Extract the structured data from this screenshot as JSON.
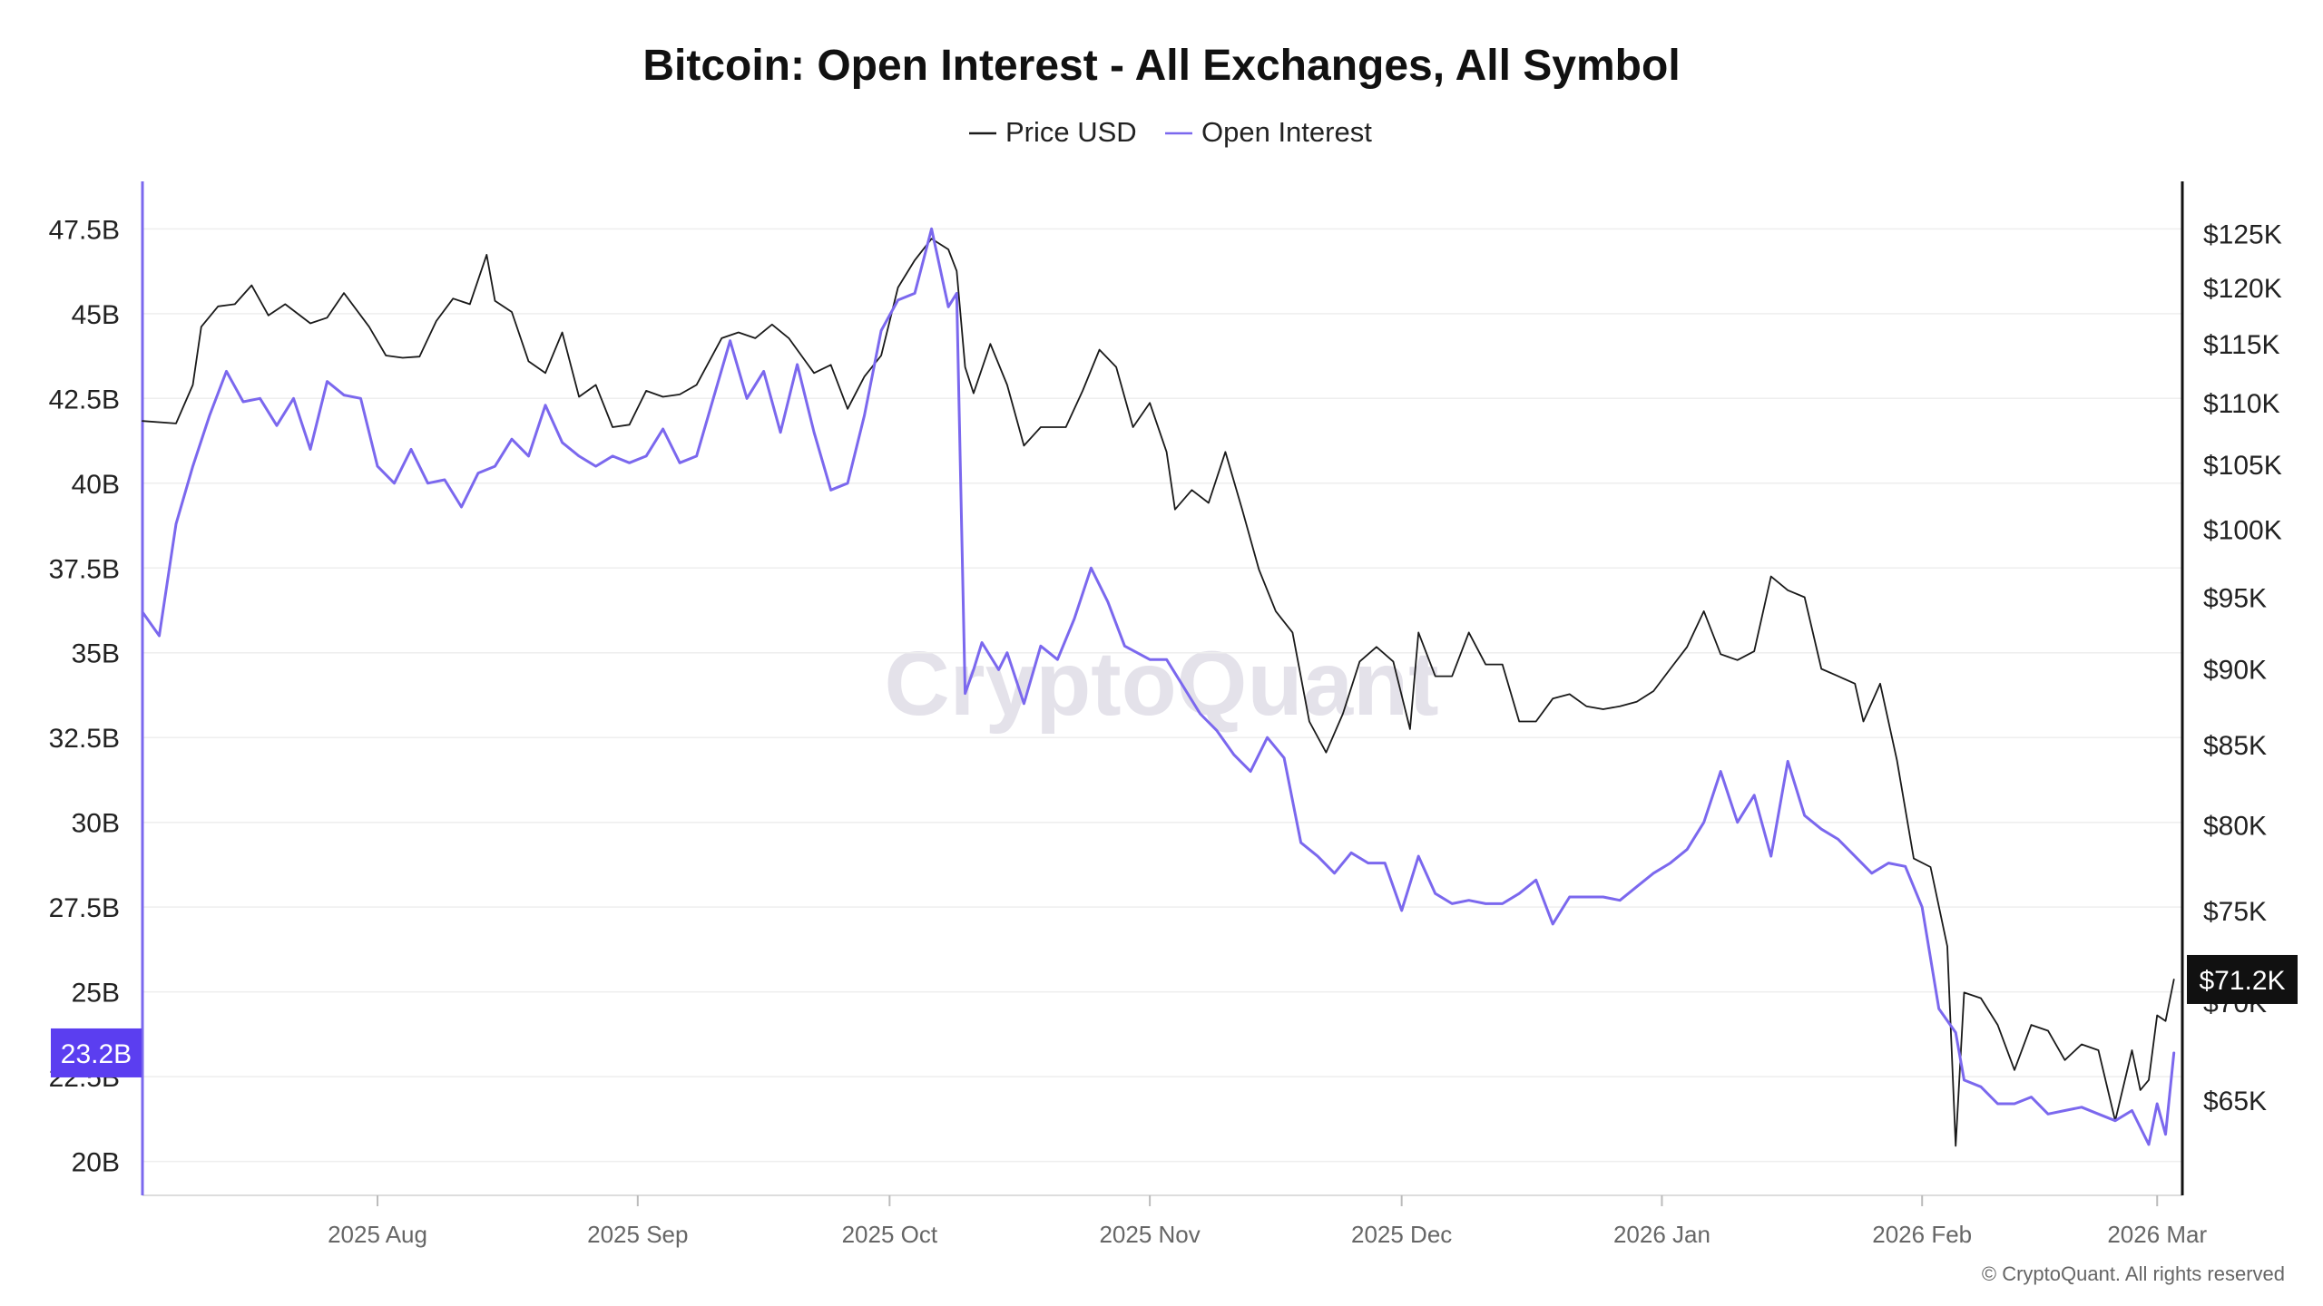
{
  "chart_data": {
    "type": "line",
    "title": "Bitcoin: Open Interest - All Exchanges, All Symbol",
    "legend": {
      "position": "top-center",
      "items": [
        {
          "name": "Price USD",
          "color": "#1a1a1a"
        },
        {
          "name": "Open Interest",
          "color": "#7b68ee"
        }
      ]
    },
    "x_ticks": [
      "2025 Aug",
      "2025 Sep",
      "2025 Oct",
      "2025 Nov",
      "2025 Dec",
      "2026 Jan",
      "2026 Feb",
      "2026 Mar"
    ],
    "x_range": [
      "2025-07-04",
      "2026-03-04"
    ],
    "left_axis": {
      "series": "Open Interest",
      "ticks": [
        "20B",
        "22.5B",
        "25B",
        "27.5B",
        "30B",
        "32.5B",
        "35B",
        "37.5B",
        "40B",
        "42.5B",
        "45B",
        "47.5B"
      ],
      "tick_values": [
        20,
        22.5,
        25,
        27.5,
        30,
        32.5,
        35,
        37.5,
        40,
        42.5,
        45,
        47.5
      ],
      "range_billions": [
        19,
        48.9
      ],
      "color": "#7b68ee"
    },
    "right_axis": {
      "series": "Price USD",
      "scale": "log",
      "ticks": [
        "$65K",
        "$70K",
        "$75K",
        "$80K",
        "$85K",
        "$90K",
        "$95K",
        "$100K",
        "$105K",
        "$110K",
        "$115K",
        "$120K",
        "$125K"
      ],
      "tick_values": [
        65000,
        70000,
        75000,
        80000,
        85000,
        90000,
        95000,
        100000,
        105000,
        110000,
        115000,
        120000,
        125000
      ],
      "range_usd": [
        60500,
        130000
      ],
      "color": "#1a1a1a"
    },
    "grid": "horizontal",
    "last_value_labels": {
      "open_interest": "23.2B",
      "price": "$71.2K"
    },
    "watermark": "CryptoQuant",
    "copyright": "© CryptoQuant. All rights reserved",
    "series": [
      {
        "name": "Price USD",
        "color": "#1a1a1a",
        "unit": "USD",
        "points": [
          [
            "2025-07-04",
            108500
          ],
          [
            "2025-07-08",
            108300
          ],
          [
            "2025-07-10",
            111500
          ],
          [
            "2025-07-11",
            116500
          ],
          [
            "2025-07-13",
            118300
          ],
          [
            "2025-07-15",
            118500
          ],
          [
            "2025-07-17",
            120200
          ],
          [
            "2025-07-19",
            117500
          ],
          [
            "2025-07-21",
            118500
          ],
          [
            "2025-07-24",
            116800
          ],
          [
            "2025-07-26",
            117300
          ],
          [
            "2025-07-28",
            119500
          ],
          [
            "2025-07-31",
            116500
          ],
          [
            "2025-08-02",
            114000
          ],
          [
            "2025-08-04",
            113800
          ],
          [
            "2025-08-06",
            113900
          ],
          [
            "2025-08-08",
            117000
          ],
          [
            "2025-08-10",
            119000
          ],
          [
            "2025-08-12",
            118500
          ],
          [
            "2025-08-14",
            123000
          ],
          [
            "2025-08-15",
            118800
          ],
          [
            "2025-08-17",
            117800
          ],
          [
            "2025-08-19",
            113500
          ],
          [
            "2025-08-21",
            112500
          ],
          [
            "2025-08-23",
            116000
          ],
          [
            "2025-08-25",
            110500
          ],
          [
            "2025-08-27",
            111500
          ],
          [
            "2025-08-29",
            108000
          ],
          [
            "2025-08-31",
            108200
          ],
          [
            "2025-09-02",
            111000
          ],
          [
            "2025-09-04",
            110500
          ],
          [
            "2025-09-06",
            110700
          ],
          [
            "2025-09-08",
            111500
          ],
          [
            "2025-09-11",
            115500
          ],
          [
            "2025-09-13",
            116000
          ],
          [
            "2025-09-15",
            115500
          ],
          [
            "2025-09-17",
            116700
          ],
          [
            "2025-09-19",
            115500
          ],
          [
            "2025-09-22",
            112500
          ],
          [
            "2025-09-24",
            113200
          ],
          [
            "2025-09-26",
            109500
          ],
          [
            "2025-09-28",
            112200
          ],
          [
            "2025-09-30",
            114000
          ],
          [
            "2025-10-02",
            120000
          ],
          [
            "2025-10-04",
            122500
          ],
          [
            "2025-10-06",
            124500
          ],
          [
            "2025-10-08",
            123500
          ],
          [
            "2025-10-09",
            121500
          ],
          [
            "2025-10-10",
            113000
          ],
          [
            "2025-10-11",
            110800
          ],
          [
            "2025-10-13",
            115000
          ],
          [
            "2025-10-15",
            111500
          ],
          [
            "2025-10-17",
            106500
          ],
          [
            "2025-10-19",
            108000
          ],
          [
            "2025-10-22",
            108000
          ],
          [
            "2025-10-24",
            111000
          ],
          [
            "2025-10-26",
            114500
          ],
          [
            "2025-10-28",
            113000
          ],
          [
            "2025-10-30",
            108000
          ],
          [
            "2025-11-01",
            110000
          ],
          [
            "2025-11-03",
            106000
          ],
          [
            "2025-11-04",
            101500
          ],
          [
            "2025-11-06",
            103000
          ],
          [
            "2025-11-08",
            102000
          ],
          [
            "2025-11-10",
            106000
          ],
          [
            "2025-11-12",
            101500
          ],
          [
            "2025-11-14",
            97000
          ],
          [
            "2025-11-16",
            94000
          ],
          [
            "2025-11-18",
            92500
          ],
          [
            "2025-11-20",
            86500
          ],
          [
            "2025-11-22",
            84500
          ],
          [
            "2025-11-24",
            87000
          ],
          [
            "2025-11-26",
            90500
          ],
          [
            "2025-11-28",
            91500
          ],
          [
            "2025-11-30",
            90500
          ],
          [
            "2025-12-02",
            86000
          ],
          [
            "2025-12-03",
            92500
          ],
          [
            "2025-12-05",
            89500
          ],
          [
            "2025-12-07",
            89500
          ],
          [
            "2025-12-09",
            92500
          ],
          [
            "2025-12-11",
            90300
          ],
          [
            "2025-12-13",
            90300
          ],
          [
            "2025-12-15",
            86500
          ],
          [
            "2025-12-17",
            86500
          ],
          [
            "2025-12-19",
            88000
          ],
          [
            "2025-12-21",
            88300
          ],
          [
            "2025-12-23",
            87500
          ],
          [
            "2025-12-25",
            87300
          ],
          [
            "2025-12-27",
            87500
          ],
          [
            "2025-12-29",
            87800
          ],
          [
            "2025-12-31",
            88500
          ],
          [
            "2026-01-02",
            90000
          ],
          [
            "2026-01-04",
            91500
          ],
          [
            "2026-01-06",
            94000
          ],
          [
            "2026-01-08",
            91000
          ],
          [
            "2026-01-10",
            90600
          ],
          [
            "2026-01-12",
            91200
          ],
          [
            "2026-01-14",
            96500
          ],
          [
            "2026-01-16",
            95500
          ],
          [
            "2026-01-18",
            95000
          ],
          [
            "2026-01-20",
            90000
          ],
          [
            "2026-01-22",
            89500
          ],
          [
            "2026-01-24",
            89000
          ],
          [
            "2026-01-25",
            86500
          ],
          [
            "2026-01-27",
            89000
          ],
          [
            "2026-01-29",
            84000
          ],
          [
            "2026-01-31",
            78000
          ],
          [
            "2026-02-02",
            77500
          ],
          [
            "2026-02-04",
            73000
          ],
          [
            "2026-02-05",
            62800
          ],
          [
            "2026-02-06",
            70500
          ],
          [
            "2026-02-08",
            70200
          ],
          [
            "2026-02-10",
            68800
          ],
          [
            "2026-02-12",
            66500
          ],
          [
            "2026-02-14",
            68800
          ],
          [
            "2026-02-16",
            68500
          ],
          [
            "2026-02-18",
            67000
          ],
          [
            "2026-02-20",
            67800
          ],
          [
            "2026-02-22",
            67500
          ],
          [
            "2026-02-24",
            64000
          ],
          [
            "2026-02-26",
            67500
          ],
          [
            "2026-02-27",
            65500
          ],
          [
            "2026-02-28",
            66000
          ],
          [
            "2026-03-01",
            69300
          ],
          [
            "2026-03-02",
            69000
          ],
          [
            "2026-03-03",
            71200
          ]
        ]
      },
      {
        "name": "Open Interest",
        "color": "#7b68ee",
        "unit": "billion USD",
        "points": [
          [
            "2025-07-04",
            36.2
          ],
          [
            "2025-07-06",
            35.5
          ],
          [
            "2025-07-08",
            38.8
          ],
          [
            "2025-07-10",
            40.5
          ],
          [
            "2025-07-12",
            42.0
          ],
          [
            "2025-07-14",
            43.3
          ],
          [
            "2025-07-16",
            42.4
          ],
          [
            "2025-07-18",
            42.5
          ],
          [
            "2025-07-20",
            41.7
          ],
          [
            "2025-07-22",
            42.5
          ],
          [
            "2025-07-24",
            41.0
          ],
          [
            "2025-07-26",
            43.0
          ],
          [
            "2025-07-28",
            42.6
          ],
          [
            "2025-07-30",
            42.5
          ],
          [
            "2025-08-01",
            40.5
          ],
          [
            "2025-08-03",
            40.0
          ],
          [
            "2025-08-05",
            41.0
          ],
          [
            "2025-08-07",
            40.0
          ],
          [
            "2025-08-09",
            40.1
          ],
          [
            "2025-08-11",
            39.3
          ],
          [
            "2025-08-13",
            40.3
          ],
          [
            "2025-08-15",
            40.5
          ],
          [
            "2025-08-17",
            41.3
          ],
          [
            "2025-08-19",
            40.8
          ],
          [
            "2025-08-21",
            42.3
          ],
          [
            "2025-08-23",
            41.2
          ],
          [
            "2025-08-25",
            40.8
          ],
          [
            "2025-08-27",
            40.5
          ],
          [
            "2025-08-29",
            40.8
          ],
          [
            "2025-08-31",
            40.6
          ],
          [
            "2025-09-02",
            40.8
          ],
          [
            "2025-09-04",
            41.6
          ],
          [
            "2025-09-06",
            40.6
          ],
          [
            "2025-09-08",
            40.8
          ],
          [
            "2025-09-10",
            42.5
          ],
          [
            "2025-09-12",
            44.2
          ],
          [
            "2025-09-14",
            42.5
          ],
          [
            "2025-09-16",
            43.3
          ],
          [
            "2025-09-18",
            41.5
          ],
          [
            "2025-09-20",
            43.5
          ],
          [
            "2025-09-22",
            41.5
          ],
          [
            "2025-09-24",
            39.8
          ],
          [
            "2025-09-26",
            40.0
          ],
          [
            "2025-09-28",
            42.0
          ],
          [
            "2025-09-30",
            44.5
          ],
          [
            "2025-10-02",
            45.4
          ],
          [
            "2025-10-04",
            45.6
          ],
          [
            "2025-10-06",
            47.5
          ],
          [
            "2025-10-08",
            45.2
          ],
          [
            "2025-10-09",
            45.6
          ],
          [
            "2025-10-10",
            33.8
          ],
          [
            "2025-10-11",
            34.5
          ],
          [
            "2025-10-12",
            35.3
          ],
          [
            "2025-10-14",
            34.5
          ],
          [
            "2025-10-15",
            35.0
          ],
          [
            "2025-10-17",
            33.5
          ],
          [
            "2025-10-19",
            35.2
          ],
          [
            "2025-10-21",
            34.8
          ],
          [
            "2025-10-23",
            36.0
          ],
          [
            "2025-10-25",
            37.5
          ],
          [
            "2025-10-27",
            36.5
          ],
          [
            "2025-10-29",
            35.2
          ],
          [
            "2025-11-01",
            34.8
          ],
          [
            "2025-11-03",
            34.8
          ],
          [
            "2025-11-05",
            34.0
          ],
          [
            "2025-11-07",
            33.2
          ],
          [
            "2025-11-09",
            32.7
          ],
          [
            "2025-11-11",
            32.0
          ],
          [
            "2025-11-13",
            31.5
          ],
          [
            "2025-11-15",
            32.5
          ],
          [
            "2025-11-17",
            31.9
          ],
          [
            "2025-11-19",
            29.4
          ],
          [
            "2025-11-21",
            29.0
          ],
          [
            "2025-11-23",
            28.5
          ],
          [
            "2025-11-25",
            29.1
          ],
          [
            "2025-11-27",
            28.8
          ],
          [
            "2025-11-29",
            28.8
          ],
          [
            "2025-12-01",
            27.4
          ],
          [
            "2025-12-03",
            29.0
          ],
          [
            "2025-12-05",
            27.9
          ],
          [
            "2025-12-07",
            27.6
          ],
          [
            "2025-12-09",
            27.7
          ],
          [
            "2025-12-11",
            27.6
          ],
          [
            "2025-12-13",
            27.6
          ],
          [
            "2025-12-15",
            27.9
          ],
          [
            "2025-12-17",
            28.3
          ],
          [
            "2025-12-19",
            27.0
          ],
          [
            "2025-12-21",
            27.8
          ],
          [
            "2025-12-23",
            27.8
          ],
          [
            "2025-12-25",
            27.8
          ],
          [
            "2025-12-27",
            27.7
          ],
          [
            "2025-12-29",
            28.1
          ],
          [
            "2025-12-31",
            28.5
          ],
          [
            "2026-01-02",
            28.8
          ],
          [
            "2026-01-04",
            29.2
          ],
          [
            "2026-01-06",
            30.0
          ],
          [
            "2026-01-08",
            31.5
          ],
          [
            "2026-01-10",
            30.0
          ],
          [
            "2026-01-12",
            30.8
          ],
          [
            "2026-01-14",
            29.0
          ],
          [
            "2026-01-16",
            31.8
          ],
          [
            "2026-01-18",
            30.2
          ],
          [
            "2026-01-20",
            29.8
          ],
          [
            "2026-01-22",
            29.5
          ],
          [
            "2026-01-24",
            29.0
          ],
          [
            "2026-01-26",
            28.5
          ],
          [
            "2026-01-28",
            28.8
          ],
          [
            "2026-01-30",
            28.7
          ],
          [
            "2026-02-01",
            27.5
          ],
          [
            "2026-02-03",
            24.5
          ],
          [
            "2026-02-05",
            23.8
          ],
          [
            "2026-02-06",
            22.4
          ],
          [
            "2026-02-08",
            22.2
          ],
          [
            "2026-02-10",
            21.7
          ],
          [
            "2026-02-12",
            21.7
          ],
          [
            "2026-02-14",
            21.9
          ],
          [
            "2026-02-16",
            21.4
          ],
          [
            "2026-02-18",
            21.5
          ],
          [
            "2026-02-20",
            21.6
          ],
          [
            "2026-02-22",
            21.4
          ],
          [
            "2026-02-24",
            21.2
          ],
          [
            "2026-02-26",
            21.5
          ],
          [
            "2026-02-28",
            20.5
          ],
          [
            "2026-03-01",
            21.7
          ],
          [
            "2026-03-02",
            20.8
          ],
          [
            "2026-03-03",
            23.2
          ]
        ]
      }
    ]
  }
}
